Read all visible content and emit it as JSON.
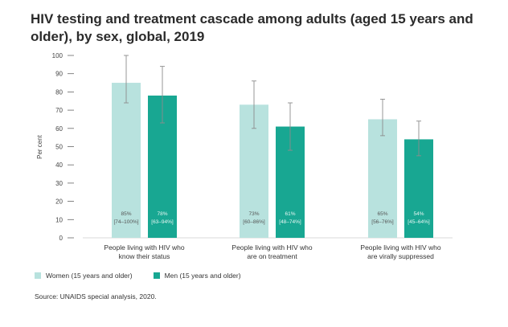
{
  "chart_data": {
    "type": "bar",
    "title": "HIV testing and treatment cascade among adults (aged 15 years and older), by sex, global, 2019",
    "xlabel": "",
    "ylabel": "Per cent",
    "ylim": [
      0,
      100
    ],
    "yticks": [
      0,
      10,
      20,
      30,
      40,
      50,
      60,
      70,
      80,
      90,
      100
    ],
    "grid": false,
    "legend_position": "bottom-left",
    "categories": [
      [
        "People living with HIV who",
        "know their status"
      ],
      [
        "People living with HIV who",
        "are on treatment"
      ],
      [
        "People living with HIV who",
        "are virally suppressed"
      ]
    ],
    "series": [
      {
        "name": "Women (15 years and older)",
        "color": "#b8e2de",
        "values": [
          85,
          73,
          65
        ],
        "lower": [
          74,
          60,
          56
        ],
        "upper": [
          100,
          86,
          76
        ],
        "labels": [
          "85%",
          "73%",
          "65%"
        ],
        "range_labels": [
          "[74–100%]",
          "[60–86%]",
          "[56–76%]"
        ]
      },
      {
        "name": "Men (15 years and older)",
        "color": "#18a792",
        "values": [
          78,
          61,
          54
        ],
        "lower": [
          63,
          48,
          45
        ],
        "upper": [
          94,
          74,
          64
        ],
        "labels": [
          "78%",
          "61%",
          "54%"
        ],
        "range_labels": [
          "[63–94%]",
          "[48–74%]",
          "[45–64%]"
        ]
      }
    ]
  },
  "source": "Source: UNAIDS special analysis, 2020."
}
